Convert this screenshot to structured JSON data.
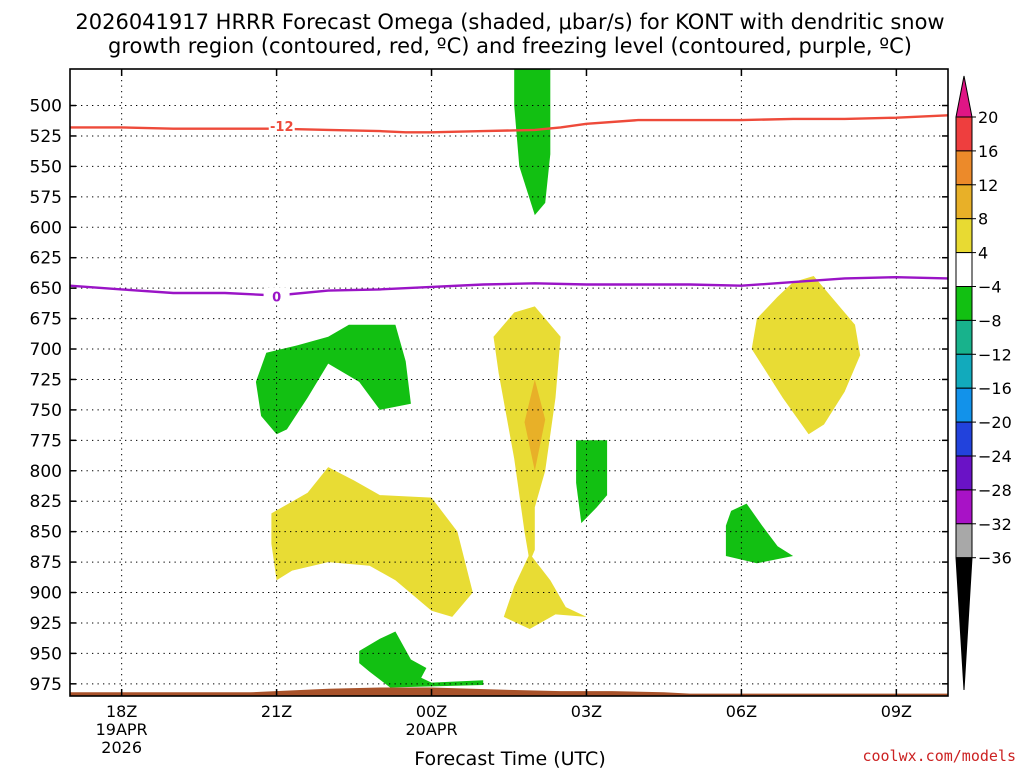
{
  "chart_data": {
    "type": "time-height contour",
    "title_line1": "2026041917 HRRR Forecast Omega (shaded, μbar/s) for KONT with dendritic snow",
    "title_line2": "growth region (contoured, red, ºC) and freezing level (contoured, purple, ºC)",
    "xlabel": "Forecast Time (UTC)",
    "credit": "coolwx.com/models",
    "x_range_hours": [
      -1.0,
      16.0
    ],
    "y_range_mb": [
      470,
      985
    ],
    "y_ticks": [
      500,
      525,
      550,
      575,
      600,
      625,
      650,
      675,
      700,
      725,
      750,
      775,
      800,
      825,
      850,
      875,
      900,
      925,
      950,
      975
    ],
    "x_ticks": [
      {
        "hour": 0,
        "label": "18Z",
        "date": "19APR",
        "year": "2026"
      },
      {
        "hour": 3,
        "label": "21Z",
        "date": "",
        "year": ""
      },
      {
        "hour": 6,
        "label": "00Z",
        "date": "20APR",
        "year": ""
      },
      {
        "hour": 9,
        "label": "03Z",
        "date": "",
        "year": ""
      },
      {
        "hour": 12,
        "label": "06Z",
        "date": "",
        "year": ""
      },
      {
        "hour": 15,
        "label": "09Z",
        "date": "",
        "year": ""
      }
    ],
    "colorbar": {
      "labels": [
        "20",
        "16",
        "12",
        "8",
        "4",
        "−4",
        "−8",
        "−12",
        "−16",
        "−20",
        "−24",
        "−28",
        "−32",
        "−36"
      ],
      "colors": [
        "#ee3e3e",
        "#ec8a2a",
        "#e8b028",
        "#e8da32",
        "#ffffff",
        "#12c012",
        "#18b28c",
        "#12aabc",
        "#1292ea",
        "#2242dc",
        "#6a12c6",
        "#a812c6",
        "#a8a8a8"
      ],
      "top_extend_color": "#e01585",
      "bottom_extend_color": "#000000"
    },
    "contour_lines": [
      {
        "name": "dendritic-12C",
        "label": "-12",
        "color": "#ee4a3a",
        "label_at": [
          3.1,
          517
        ],
        "points": [
          [
            -1.0,
            518
          ],
          [
            0.0,
            518
          ],
          [
            1.0,
            519
          ],
          [
            2.0,
            519
          ],
          [
            3.0,
            519
          ],
          [
            4.0,
            520
          ],
          [
            5.0,
            521
          ],
          [
            5.5,
            522
          ],
          [
            6.0,
            522
          ],
          [
            7.0,
            521
          ],
          [
            8.0,
            520
          ],
          [
            8.5,
            518
          ],
          [
            9.0,
            515
          ],
          [
            10.0,
            512
          ],
          [
            11.0,
            512
          ],
          [
            12.0,
            512
          ],
          [
            13.0,
            511
          ],
          [
            14.0,
            511
          ],
          [
            15.0,
            510
          ],
          [
            16.0,
            508
          ]
        ]
      },
      {
        "name": "freezing-level-0C",
        "label": "0",
        "color": "#9a14c6",
        "label_at": [
          3.0,
          657
        ],
        "points": [
          [
            -1.0,
            648
          ],
          [
            0.0,
            651
          ],
          [
            1.0,
            654
          ],
          [
            2.0,
            654
          ],
          [
            3.0,
            656
          ],
          [
            4.0,
            652
          ],
          [
            5.0,
            651
          ],
          [
            6.0,
            649
          ],
          [
            7.0,
            647
          ],
          [
            8.0,
            646
          ],
          [
            9.0,
            647
          ],
          [
            10.0,
            647
          ],
          [
            11.0,
            647
          ],
          [
            12.0,
            648
          ],
          [
            13.0,
            645
          ],
          [
            14.0,
            642
          ],
          [
            15.0,
            641
          ],
          [
            16.0,
            642
          ]
        ]
      }
    ],
    "shaded_regions": [
      {
        "name": "green-column-0330z",
        "value": -4,
        "color": "#12c012",
        "points": [
          [
            7.6,
            470
          ],
          [
            8.3,
            470
          ],
          [
            8.3,
            540
          ],
          [
            8.2,
            580
          ],
          [
            8.0,
            590
          ],
          [
            7.7,
            550
          ],
          [
            7.6,
            500
          ]
        ]
      },
      {
        "name": "green-blob-21z-700mb",
        "value": -4,
        "color": "#12c012",
        "points": [
          [
            2.6,
            727
          ],
          [
            2.8,
            703
          ],
          [
            3.4,
            697
          ],
          [
            4.0,
            690
          ],
          [
            4.4,
            680
          ],
          [
            5.3,
            680
          ],
          [
            5.5,
            710
          ],
          [
            5.6,
            745
          ],
          [
            5.0,
            750
          ],
          [
            4.6,
            727
          ],
          [
            4.0,
            712
          ],
          [
            3.6,
            740
          ],
          [
            3.2,
            766
          ],
          [
            3.0,
            770
          ],
          [
            2.7,
            755
          ]
        ]
      },
      {
        "name": "yellow-blob-22z-850mb",
        "value": 4,
        "color": "#e8dc34",
        "points": [
          [
            2.9,
            835
          ],
          [
            3.6,
            818
          ],
          [
            4.0,
            797
          ],
          [
            4.5,
            808
          ],
          [
            5.0,
            820
          ],
          [
            6.0,
            822
          ],
          [
            6.5,
            850
          ],
          [
            6.8,
            900
          ],
          [
            6.4,
            920
          ],
          [
            6.0,
            915
          ],
          [
            5.3,
            890
          ],
          [
            4.8,
            878
          ],
          [
            4.0,
            875
          ],
          [
            3.3,
            882
          ],
          [
            3.0,
            890
          ],
          [
            2.9,
            860
          ]
        ]
      },
      {
        "name": "yellow-plume-02z",
        "value": 4,
        "color": "#e8dc34",
        "points": [
          [
            8.0,
            665
          ],
          [
            8.5,
            690
          ],
          [
            8.4,
            740
          ],
          [
            8.2,
            800
          ],
          [
            8.0,
            830
          ],
          [
            8.0,
            865
          ],
          [
            7.9,
            875
          ],
          [
            7.8,
            850
          ],
          [
            7.6,
            790
          ],
          [
            7.3,
            720
          ],
          [
            7.2,
            690
          ],
          [
            7.6,
            670
          ]
        ]
      },
      {
        "name": "orange-core-02z",
        "value": 8,
        "color": "#e8b028",
        "points": [
          [
            8.0,
            725
          ],
          [
            8.2,
            758
          ],
          [
            8.0,
            800
          ],
          [
            7.8,
            760
          ]
        ]
      },
      {
        "name": "yellow-blob-02z-900mb",
        "value": 4,
        "color": "#e8dc34",
        "points": [
          [
            7.9,
            868
          ],
          [
            8.3,
            890
          ],
          [
            8.6,
            912
          ],
          [
            9.0,
            920
          ],
          [
            8.4,
            918
          ],
          [
            7.9,
            930
          ],
          [
            7.4,
            920
          ],
          [
            7.6,
            895
          ]
        ]
      },
      {
        "name": "green-blob-03z-800mb",
        "value": -4,
        "color": "#12c012",
        "points": [
          [
            8.8,
            775
          ],
          [
            9.4,
            775
          ],
          [
            9.4,
            820
          ],
          [
            9.2,
            830
          ],
          [
            8.9,
            843
          ],
          [
            8.8,
            810
          ]
        ]
      },
      {
        "name": "yellow-blob-07z-700mb",
        "value": 4,
        "color": "#e8dc34",
        "points": [
          [
            13.0,
            645
          ],
          [
            13.4,
            640
          ],
          [
            14.2,
            680
          ],
          [
            14.3,
            705
          ],
          [
            14.0,
            735
          ],
          [
            13.6,
            762
          ],
          [
            13.3,
            770
          ],
          [
            12.8,
            740
          ],
          [
            12.2,
            700
          ],
          [
            12.3,
            675
          ],
          [
            12.7,
            657
          ]
        ]
      },
      {
        "name": "green-blob-06z-850mb",
        "value": -4,
        "color": "#12c012",
        "points": [
          [
            11.8,
            833
          ],
          [
            12.1,
            827
          ],
          [
            12.4,
            845
          ],
          [
            12.7,
            862
          ],
          [
            13.0,
            870
          ],
          [
            12.3,
            876
          ],
          [
            11.7,
            870
          ],
          [
            11.7,
            845
          ]
        ]
      },
      {
        "name": "green-blob-00z-950mb",
        "value": -4,
        "color": "#12c012",
        "points": [
          [
            4.6,
            948
          ],
          [
            5.0,
            938
          ],
          [
            5.3,
            932
          ],
          [
            5.6,
            955
          ],
          [
            5.9,
            962
          ],
          [
            5.8,
            970
          ],
          [
            6.0,
            974
          ],
          [
            7.0,
            972
          ],
          [
            7.0,
            976
          ],
          [
            5.2,
            978
          ],
          [
            4.8,
            965
          ],
          [
            4.6,
            958
          ]
        ]
      }
    ],
    "terrain": {
      "name": "ground-terrain",
      "color": "#a8522a",
      "points": [
        [
          -1.0,
          982
        ],
        [
          2.5,
          982
        ],
        [
          4.0,
          979
        ],
        [
          5.0,
          978
        ],
        [
          6.0,
          978
        ],
        [
          7.5,
          980
        ],
        [
          8.5,
          981
        ],
        [
          9.5,
          981
        ],
        [
          10.5,
          982
        ],
        [
          11.0,
          983
        ],
        [
          16.0,
          983
        ],
        [
          16.0,
          990
        ],
        [
          -1.0,
          990
        ]
      ]
    }
  }
}
